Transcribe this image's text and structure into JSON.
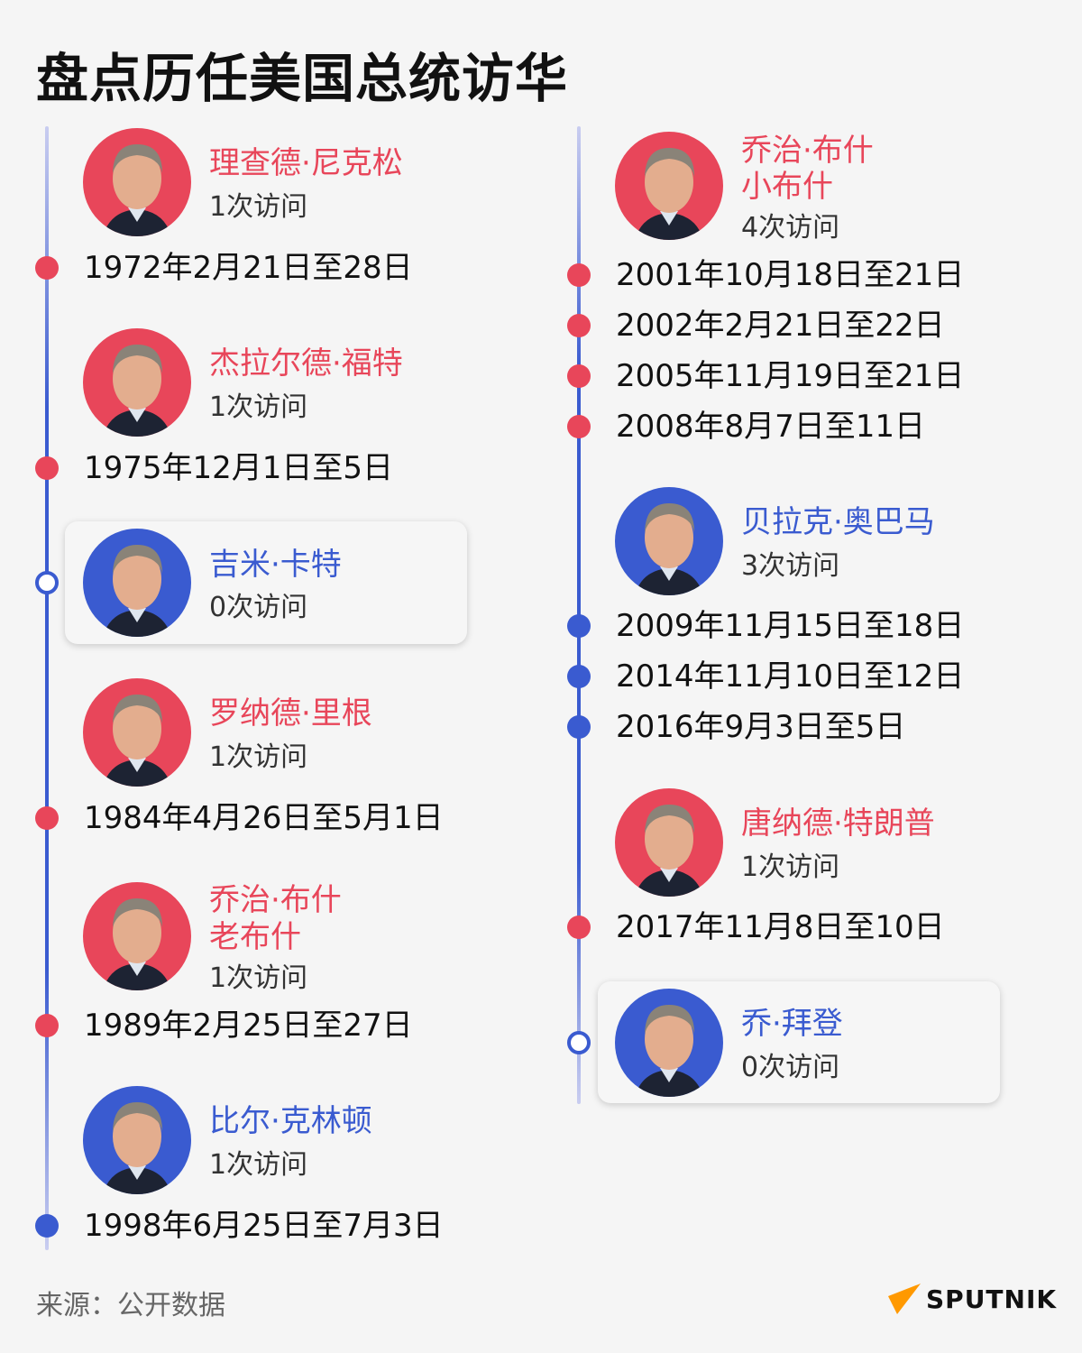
{
  "title": "盘点历任美国总统访华",
  "colors": {
    "republican": "#e8465a",
    "democrat": "#3a5bd0",
    "logo_accent": "#ff9900"
  },
  "presidents": [
    {
      "name": "理查德·尼克松",
      "subname": "",
      "count": "1次访问",
      "party_color": "republican",
      "highlight": false,
      "dates": [
        "1972年2月21日至28日"
      ]
    },
    {
      "name": "杰拉尔德·福特",
      "subname": "",
      "count": "1次访问",
      "party_color": "republican",
      "highlight": false,
      "dates": [
        "1975年12月1日至5日"
      ]
    },
    {
      "name": "吉米·卡特",
      "subname": "",
      "count": "0次访问",
      "party_color": "democrat",
      "highlight": true,
      "dates": []
    },
    {
      "name": "罗纳德·里根",
      "subname": "",
      "count": "1次访问",
      "party_color": "republican",
      "highlight": false,
      "dates": [
        "1984年4月26日至5月1日"
      ]
    },
    {
      "name": "乔治·布什",
      "subname": "老布什",
      "count": "1次访问",
      "party_color": "republican",
      "highlight": false,
      "dates": [
        "1989年2月25日至27日"
      ]
    },
    {
      "name": "比尔·克林顿",
      "subname": "",
      "count": "1次访问",
      "party_color": "democrat",
      "highlight": false,
      "dates": [
        "1998年6月25日至7月3日"
      ]
    },
    {
      "name": "乔治·布什",
      "subname": "小布什",
      "count": "4次访问",
      "party_color": "republican",
      "highlight": false,
      "dates": [
        "2001年10月18日至21日",
        "2002年2月21日至22日",
        "2005年11月19日至21日",
        "2008年8月7日至11日"
      ]
    },
    {
      "name": "贝拉克·奥巴马",
      "subname": "",
      "count": "3次访问",
      "party_color": "democrat",
      "highlight": false,
      "dates": [
        "2009年11月15日至18日",
        "2014年11月10日至12日",
        "2016年9月3日至5日"
      ]
    },
    {
      "name": "唐纳德·特朗普",
      "subname": "",
      "count": "1次访问",
      "party_color": "republican",
      "highlight": false,
      "dates": [
        "2017年11月8日至10日"
      ]
    },
    {
      "name": "乔·拜登",
      "subname": "",
      "count": "0次访问",
      "party_color": "democrat",
      "highlight": true,
      "dates": []
    }
  ],
  "source": "来源：公开数据",
  "logo": "SPUTNIK"
}
